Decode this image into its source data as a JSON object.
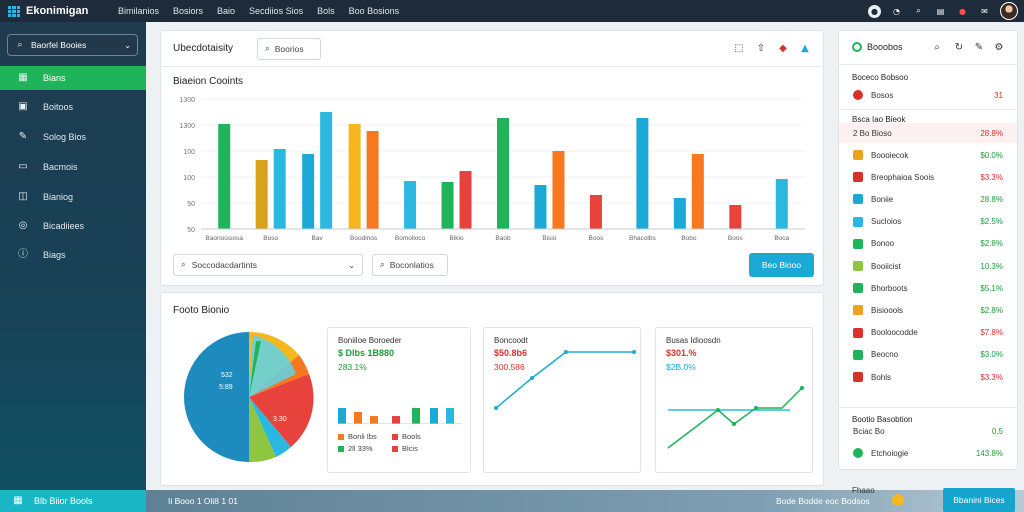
{
  "app": {
    "title": "Ekonimigan"
  },
  "topnav": [
    "Bimilanios",
    "Bosiors",
    "Baio",
    "Secdiios Sios",
    "Bols",
    "Boo Bosions"
  ],
  "topright_icons": [
    "user-circle-icon",
    "chat-icon",
    "search-icon",
    "document-icon",
    "notification-icon",
    "mail-icon"
  ],
  "sidebar": {
    "search": "Baorfel Booies",
    "items": [
      {
        "label": "Bians",
        "icon": "grid-icon"
      },
      {
        "label": "Boitoos",
        "icon": "calendar-icon"
      },
      {
        "label": "Solog Bios",
        "icon": "edit-icon"
      },
      {
        "label": "Bacmois",
        "icon": "document-icon"
      },
      {
        "label": "Bianiog",
        "icon": "folder-icon"
      },
      {
        "label": "Bicadiiees",
        "icon": "compass-icon"
      },
      {
        "label": "Biags",
        "icon": "info-icon"
      }
    ],
    "footer": "Blb Biior Bools"
  },
  "card1": {
    "title": "Ubecdotaisity",
    "search_btn": "Boorios",
    "chart_title": "Biaeion Cooints",
    "select_label": "Soccodacdartints",
    "filter_btn": "Boconlatios",
    "primary_btn": "Beo Biooo"
  },
  "chart_data": {
    "type": "bar",
    "categories": [
      "Baonoosiosa",
      "Boso",
      "Bav",
      "Boodinos",
      "Bomolloco",
      "Bikio",
      "Baob",
      "Bisio",
      "Boos",
      "Bhacolbs",
      "Bobo",
      "Boos",
      "Boca"
    ],
    "series": [
      {
        "values": [
          1050,
          690,
          750,
          1050,
          480,
          470,
          1110,
          440,
          340,
          1110,
          310,
          240,
          500
        ]
      },
      {
        "values": [
          0,
          800,
          1170,
          0,
          0,
          0,
          0,
          0,
          0,
          0,
          0,
          0,
          0
        ]
      },
      {
        "values": [
          0,
          0,
          0,
          980,
          0,
          0,
          0,
          780,
          0,
          0,
          750,
          0,
          0
        ]
      },
      {
        "values": [
          0,
          0,
          0,
          0,
          0,
          580,
          0,
          0,
          0,
          0,
          0,
          0,
          0
        ]
      }
    ],
    "ylim": [
      0,
      1300
    ],
    "yticks": [
      "50",
      "50",
      "100",
      "100",
      "1300",
      "1300"
    ]
  },
  "card2": {
    "title": "Footo Bionio",
    "pie_labels": [
      "532",
      "5:89",
      "3.30"
    ],
    "mini1": {
      "title": "Boniiloe Boroeder",
      "v1": "$ Dlbs 1B880",
      "v2": "283.1%",
      "legend": [
        "Bonli Ibs",
        "Bools",
        "2ll 33%",
        "Blcis"
      ]
    },
    "mini2": {
      "title": "Boncoodt",
      "v1": "$50.8b6",
      "v2": "300.586"
    },
    "mini3": {
      "title": "Busas Idioosdn",
      "v1": "$301.%",
      "v2": "$2B.0%"
    }
  },
  "bottombar": {
    "left": "Ii Booo 1 Oli8 1 01",
    "right": "Bode Bodde eoc Bodsos"
  },
  "rpanel": {
    "title": "Booobos",
    "section1": "Boceco Bobsoo",
    "row_top": {
      "label": "Bosos",
      "value": "31"
    },
    "section2": "Bsca Iao Bieok",
    "highlight": {
      "label": "2 Bo Bioso",
      "value": "28.8%"
    },
    "rows": [
      {
        "label": "Boooiecok",
        "value": "$0.0%",
        "color": "#f0a020"
      },
      {
        "label": "Breophaioa Soois",
        "value": "$3.3%",
        "color": "#d9302c"
      },
      {
        "label": "Boniie",
        "value": "28.8%",
        "color": "#1ba9d6"
      },
      {
        "label": "Sucloios",
        "value": "$2.5%",
        "color": "#2bb8e0"
      },
      {
        "label": "Bonoo",
        "value": "$2.8%",
        "color": "#1fb45a"
      },
      {
        "label": "Booiicist",
        "value": "10.3%",
        "color": "#8dc63f"
      },
      {
        "label": "Bhorboots",
        "value": "$5.1%",
        "color": "#1fb45a"
      },
      {
        "label": "Bisioools",
        "value": "$2.8%",
        "color": "#f0a020"
      },
      {
        "label": "Booloocodde",
        "value": "$7.8%",
        "color": "#d9302c"
      },
      {
        "label": "Beocno",
        "value": "$3.0%",
        "color": "#1fb45a"
      },
      {
        "label": "Bohls",
        "value": "$3.3%",
        "color": "#d9302c"
      }
    ],
    "section3": "Bootio Basobtion",
    "row_b1": {
      "label": "Bciac Bo",
      "value": "0.5"
    },
    "row_b2": {
      "label": "Etchoiogie",
      "value": "143.8%"
    },
    "footer_label": "Fhaao",
    "footer_btn": "Bbanini Bices"
  },
  "colors": {
    "accent": "#1fb45a",
    "primary": "#1ba9d6",
    "sidebar": "#1f3b4f"
  }
}
